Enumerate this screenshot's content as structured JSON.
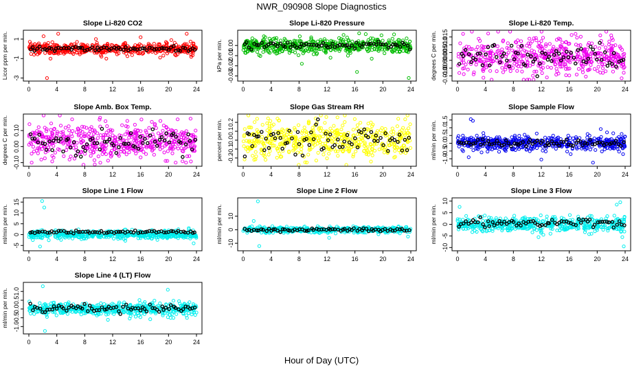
{
  "figure": {
    "title": "NWR_090908  Slope Diagnostics",
    "xlabel": "Hour of Day (UTC)"
  },
  "chart_data": [
    {
      "type": "scatter",
      "title": "Slope Li-820 CO2",
      "ylabel": "Licor ppm per min.",
      "color": "#ff0000",
      "xlim": [
        0,
        24
      ],
      "xticks": [
        0,
        4,
        8,
        12,
        16,
        20,
        24
      ],
      "ylim": [
        -3.1,
        1.7
      ],
      "yticks": [
        -3,
        -1,
        1
      ],
      "yticklabels": [
        "-3",
        "-1",
        "1"
      ],
      "series": [
        {
          "kind": "raw",
          "center": 0.0,
          "spread": 0.28,
          "outliers": [
            [
              2.1,
              1.3
            ],
            [
              3.1,
              -1.0
            ],
            [
              4.2,
              1.55
            ],
            [
              2.6,
              -3.0
            ],
            [
              9.6,
              1.0
            ],
            [
              10.4,
              -0.8
            ],
            [
              11.1,
              -1.0
            ],
            [
              16.0,
              1.2
            ],
            [
              18.8,
              -0.9
            ],
            [
              22.6,
              1.55
            ],
            [
              20.4,
              0.9
            ]
          ]
        },
        {
          "kind": "mean",
          "center": 0.0,
          "spread": 0.12
        }
      ]
    },
    {
      "type": "scatter",
      "title": "Slope Li-820 Pressure",
      "ylabel": "kPa per min.",
      "color": "#00bb00",
      "xlim": [
        0,
        24
      ],
      "xticks": [
        0,
        4,
        8,
        12,
        16,
        20,
        24
      ],
      "ylim": [
        -0.033,
        0.013
      ],
      "yticks": [
        -0.03,
        -0.02,
        -0.01,
        0.0
      ],
      "yticklabels": [
        "-0.03",
        "-0.02",
        "-0.01",
        "0.00"
      ],
      "series": [
        {
          "kind": "raw",
          "center": 0.0,
          "spread": 0.0035,
          "outliers": [
            [
              8.1,
              0.009
            ],
            [
              8.4,
              -0.018
            ],
            [
              12.5,
              -0.012
            ],
            [
              16.3,
              -0.026
            ],
            [
              16.6,
              0.012
            ],
            [
              19.8,
              0.01
            ],
            [
              23.4,
              0.007
            ],
            [
              23.7,
              -0.032
            ],
            [
              15.0,
              -0.01
            ],
            [
              21.6,
              0.011
            ],
            [
              18.4,
              -0.013
            ]
          ]
        },
        {
          "kind": "mean",
          "center": 0.0,
          "spread": 0.0015
        }
      ]
    },
    {
      "type": "scatter",
      "title": "Slope Li-820 Temp.",
      "ylabel": "degrees C per min.",
      "color": "#ee00ee",
      "xlim": [
        0,
        24
      ],
      "xticks": [
        0,
        4,
        8,
        12,
        16,
        20,
        24
      ],
      "ylim": [
        -0.012,
        0.018
      ],
      "yticks": [
        -0.01,
        -0.005,
        0.0,
        0.005,
        0.01,
        0.015
      ],
      "yticklabels": [
        "-0.010",
        "-0.005",
        "0.000",
        "0.005",
        "0.010",
        "0.015"
      ],
      "series": [
        {
          "kind": "raw",
          "center": 0.002,
          "spread": 0.0055,
          "outliers": [
            [
              0.8,
              0.017
            ],
            [
              2.3,
              -0.009
            ],
            [
              16.9,
              0.017
            ],
            [
              22.0,
              0.016
            ],
            [
              23.8,
              -0.008
            ],
            [
              12.8,
              -0.011
            ]
          ]
        },
        {
          "kind": "mean",
          "center": 0.002,
          "spread": 0.0035
        }
      ]
    },
    {
      "type": "scatter",
      "title": "Slope Amb. Box Temp.",
      "ylabel": "degrees C per min.",
      "color": "#ee00ee",
      "xlim": [
        0,
        24
      ],
      "xticks": [
        0,
        4,
        8,
        12,
        16,
        20,
        24
      ],
      "ylim": [
        -0.11,
        0.19
      ],
      "yticks": [
        -0.1,
        0.0,
        0.1
      ],
      "yticklabels": [
        "-0.10",
        "0.00",
        "0.10"
      ],
      "series": [
        {
          "kind": "raw",
          "center": 0.03,
          "spread": 0.05,
          "outliers": [
            [
              0.4,
              -0.1
            ],
            [
              6.2,
              0.17
            ],
            [
              10.2,
              0.18
            ],
            [
              14.1,
              0.16
            ],
            [
              21.3,
              0.17
            ],
            [
              22.5,
              -0.1
            ]
          ]
        },
        {
          "kind": "mean",
          "center": 0.02,
          "spread": 0.035
        }
      ]
    },
    {
      "type": "scatter",
      "title": "Slope Gas Stream RH",
      "ylabel": "percent per min.",
      "color": "#ffff00",
      "xlim": [
        0,
        24
      ],
      "xticks": [
        0,
        4,
        8,
        12,
        16,
        20,
        24
      ],
      "ylim": [
        -0.27,
        0.27
      ],
      "yticks": [
        -0.2,
        -0.1,
        0.0,
        0.1,
        0.2
      ],
      "yticklabels": [
        "-0.2",
        "-0.1",
        "0.0",
        "0.1",
        "0.2"
      ],
      "series": [
        {
          "kind": "raw",
          "center": 0.0,
          "spread": 0.1,
          "outliers": [
            [
              2.0,
              0.24
            ],
            [
              11.9,
              0.26
            ],
            [
              3.2,
              -0.22
            ],
            [
              18.3,
              -0.24
            ],
            [
              22.2,
              0.24
            ]
          ]
        },
        {
          "kind": "mean",
          "center": 0.0,
          "spread": 0.08
        }
      ]
    },
    {
      "type": "scatter",
      "title": "Slope Sample Flow",
      "ylabel": "ml/min per min.",
      "color": "#0000ee",
      "xlim": [
        0,
        24
      ],
      "xticks": [
        0,
        4,
        8,
        12,
        16,
        20,
        24
      ],
      "ylim": [
        -1.35,
        1.75
      ],
      "yticks": [
        -1.0,
        -0.5,
        0.0,
        0.5,
        1.0,
        1.5
      ],
      "yticklabels": [
        "-1.0",
        "-0.5",
        "0.0",
        "0.5",
        "1.0",
        "1.5"
      ],
      "series": [
        {
          "kind": "raw",
          "center": 0.0,
          "spread": 0.22,
          "outliers": [
            [
              1.9,
              1.55
            ],
            [
              2.2,
              1.45
            ],
            [
              1.6,
              -0.9
            ],
            [
              12.0,
              -1.05
            ],
            [
              19.4,
              -1.25
            ],
            [
              21.4,
              0.7
            ],
            [
              23.5,
              0.6
            ],
            [
              23.7,
              -0.7
            ],
            [
              9.6,
              0.55
            ],
            [
              16.2,
              -0.7
            ]
          ]
        },
        {
          "kind": "mean",
          "center": 0.0,
          "spread": 0.12
        }
      ]
    },
    {
      "type": "scatter",
      "title": "Slope Line 1 Flow",
      "ylabel": "ml/min per min.",
      "color": "#00eeee",
      "xlim": [
        0,
        24
      ],
      "xticks": [
        0,
        4,
        8,
        12,
        16,
        20,
        24
      ],
      "ylim": [
        -6.5,
        16
      ],
      "yticks": [
        -5,
        0,
        5,
        10,
        15
      ],
      "yticklabels": [
        "-5",
        "0",
        "5",
        "10",
        "15"
      ],
      "series": [
        {
          "kind": "raw",
          "center": 0.0,
          "spread": 0.9,
          "outliers": [
            [
              1.9,
              15.5
            ],
            [
              2.2,
              12.5
            ],
            [
              1.6,
              -5.5
            ],
            [
              22.9,
              3.0
            ],
            [
              23.6,
              -4.0
            ],
            [
              21.4,
              2.5
            ]
          ]
        },
        {
          "kind": "mean",
          "center": 1.2,
          "spread": 0.3
        }
      ]
    },
    {
      "type": "scatter",
      "title": "Slope Line 2 Flow",
      "ylabel": "ml/min per min.",
      "color": "#00eeee",
      "xlim": [
        0,
        24
      ],
      "xticks": [
        0,
        4,
        8,
        12,
        16,
        20,
        24
      ],
      "ylim": [
        -14,
        22
      ],
      "yticks": [
        -10,
        0,
        10
      ],
      "yticklabels": [
        "-10",
        "0",
        "10"
      ],
      "series": [
        {
          "kind": "raw",
          "center": 0.0,
          "spread": 1.0,
          "outliers": [
            [
              2.1,
              21
            ],
            [
              1.5,
              6.5
            ],
            [
              2.3,
              -12
            ],
            [
              12.3,
              -6
            ],
            [
              23.6,
              -5
            ]
          ]
        },
        {
          "kind": "mean",
          "center": 0.0,
          "spread": 0.6
        }
      ]
    },
    {
      "type": "scatter",
      "title": "Slope Line 3 Flow",
      "ylabel": "ml/min per min.",
      "color": "#00eeee",
      "xlim": [
        0,
        24
      ],
      "xticks": [
        0,
        4,
        8,
        12,
        16,
        20,
        24
      ],
      "ylim": [
        -10.5,
        10.5
      ],
      "yticks": [
        -10,
        -5,
        0,
        5,
        10
      ],
      "yticklabels": [
        "-10",
        "-5",
        "0",
        "5",
        "10"
      ],
      "series": [
        {
          "kind": "raw",
          "center": 0.0,
          "spread": 1.6,
          "outliers": [
            [
              0.3,
              7.5
            ],
            [
              11.6,
              -5.5
            ],
            [
              12.3,
              -4.5
            ],
            [
              22.8,
              8.5
            ],
            [
              23.3,
              9.5
            ],
            [
              23.6,
              -5.5
            ],
            [
              23.8,
              -9.5
            ]
          ]
        },
        {
          "kind": "mean",
          "center": 0.5,
          "spread": 1.0
        }
      ]
    },
    {
      "type": "scatter",
      "title": "Slope Line 4 (LT) Flow",
      "ylabel": "ml/min per min.",
      "color": "#00eeee",
      "xlim": [
        0,
        24
      ],
      "xticks": [
        0,
        4,
        8,
        12,
        16,
        20,
        24
      ],
      "ylim": [
        -1.3,
        1.4
      ],
      "yticks": [
        -1.0,
        -0.5,
        0.0,
        0.5,
        1.0
      ],
      "yticklabels": [
        "-1.0",
        "-0.5",
        "0.0",
        "0.5",
        "1.0"
      ],
      "series": [
        {
          "kind": "raw",
          "center": 0.0,
          "spread": 0.17,
          "outliers": [
            [
              2.0,
              1.3
            ],
            [
              2.3,
              -1.25
            ],
            [
              19.9,
              1.1
            ],
            [
              20.3,
              -0.5
            ],
            [
              2.6,
              -0.45
            ],
            [
              21.5,
              0.45
            ]
          ]
        },
        {
          "kind": "mean",
          "center": 0.05,
          "spread": 0.12
        }
      ]
    }
  ]
}
